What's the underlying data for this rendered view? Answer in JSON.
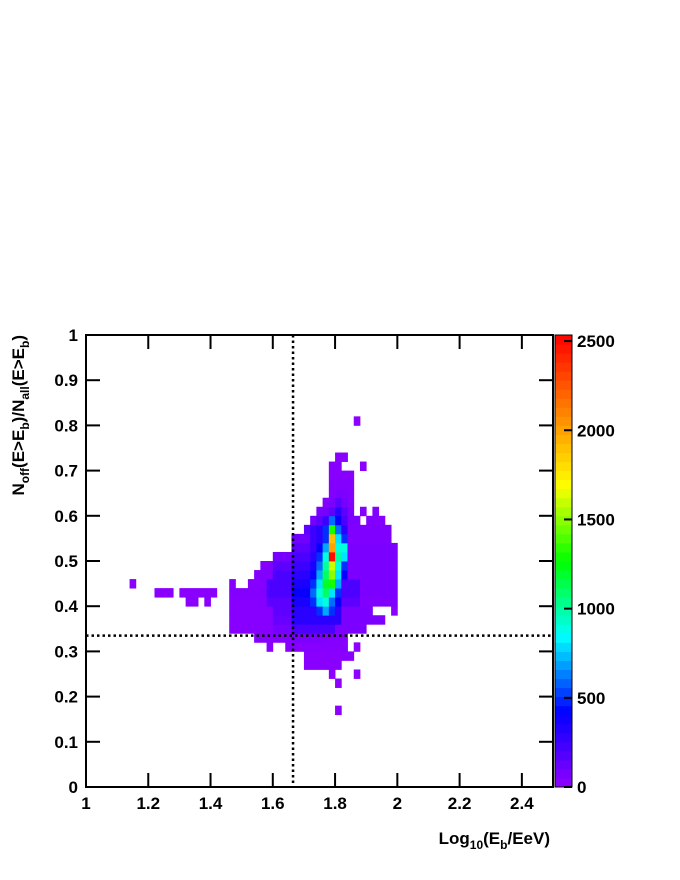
{
  "chart_data": {
    "type": "heatmap",
    "xlabel_parts": [
      {
        "text": "Log"
      },
      {
        "text": "10",
        "sub": true
      },
      {
        "text": "(E"
      },
      {
        "text": "b",
        "sub": true
      },
      {
        "text": "/EeV)"
      }
    ],
    "ylabel_parts": [
      {
        "text": "N"
      },
      {
        "text": "off",
        "sub": true
      },
      {
        "text": "(E>E"
      },
      {
        "text": "b",
        "sub": true
      },
      {
        "text": ")/N"
      },
      {
        "text": "all",
        "sub": true
      },
      {
        "text": "(E>E"
      },
      {
        "text": "b",
        "sub": true
      },
      {
        "text": ")"
      }
    ],
    "xlim": [
      1,
      2.5
    ],
    "xticks": [
      1,
      1.2,
      1.4,
      1.6,
      1.8,
      2,
      2.2,
      2.4
    ],
    "ylim": [
      0,
      1
    ],
    "yticks": [
      0,
      0.1,
      0.2,
      0.3,
      0.4,
      0.5,
      0.6,
      0.7,
      0.8,
      0.9,
      1
    ],
    "zlim": [
      0,
      2534
    ],
    "zticks": [
      0,
      500,
      1000,
      1500,
      2000,
      2500
    ],
    "palette": [
      "#9100ff",
      "#0000ff",
      "#00ffff",
      "#00ff00",
      "#ffff00",
      "#ff8000",
      "#ff0000"
    ],
    "bin_width": 0.02,
    "bin_height": 0.02,
    "reference_lines": {
      "x": 1.665,
      "y": 0.335
    },
    "rows": [
      {
        "y": 0.16,
        "x0": 1.8,
        "values": [
          10
        ]
      },
      {
        "y": 0.22,
        "x0": 1.8,
        "values": [
          10
        ]
      },
      {
        "y": 0.24,
        "x0": 1.78,
        "values": [
          10,
          null,
          null,
          null,
          10
        ]
      },
      {
        "y": 0.26,
        "x0": 1.7,
        "values": [
          20,
          20,
          20,
          20,
          20,
          20
        ]
      },
      {
        "y": 0.28,
        "x0": 1.7,
        "values": [
          20,
          20,
          20,
          20,
          20,
          20,
          20,
          20
        ]
      },
      {
        "y": 0.3,
        "x0": 1.58,
        "values": [
          20
        ]
      },
      {
        "y": 0.3,
        "x0": 1.64,
        "values": [
          30,
          30,
          30,
          30,
          30,
          30,
          30,
          30,
          30,
          30
        ]
      },
      {
        "y": 0.3,
        "x0": 1.86,
        "values": [
          10
        ]
      },
      {
        "y": 0.32,
        "x0": 1.54,
        "values": [
          30,
          30,
          30,
          30,
          30,
          30,
          60,
          60,
          60,
          60,
          60,
          40,
          40,
          40,
          30
        ]
      },
      {
        "y": 0.34,
        "x0": 1.46,
        "values": [
          30,
          30,
          30,
          30,
          30,
          30,
          30,
          80,
          80,
          80,
          200,
          200,
          200,
          200,
          200,
          200,
          200,
          60,
          60,
          60,
          60,
          60
        ]
      },
      {
        "y": 0.36,
        "x0": 1.46,
        "values": [
          30,
          30,
          30,
          30,
          30,
          30,
          30,
          120,
          120,
          120,
          300,
          300,
          300,
          300,
          300,
          300,
          300,
          300,
          60,
          60,
          60,
          60,
          60,
          60,
          60
        ]
      },
      {
        "y": 0.38,
        "x0": 1.46,
        "values": [
          30,
          30,
          30,
          30,
          30,
          30,
          30,
          150,
          150,
          150,
          300,
          300,
          300,
          300,
          500,
          700,
          500,
          300,
          60,
          60,
          60,
          60,
          60,
          null,
          null,
          null,
          20
        ]
      },
      {
        "y": 0.4,
        "x0": 1.32,
        "values": [
          20,
          20,
          null,
          20
        ]
      },
      {
        "y": 0.4,
        "x0": 1.46,
        "values": [
          30,
          30,
          30,
          30,
          30,
          30,
          150,
          150,
          150,
          150,
          350,
          350,
          350,
          500,
          800,
          900,
          600,
          400,
          150,
          150,
          150,
          50,
          50,
          50,
          50,
          50,
          50
        ]
      },
      {
        "y": 0.42,
        "x0": 1.22,
        "values": [
          20,
          20,
          20
        ]
      },
      {
        "y": 0.42,
        "x0": 1.3,
        "values": [
          20,
          20,
          20,
          20,
          20,
          20
        ]
      },
      {
        "y": 0.42,
        "x0": 1.46,
        "values": [
          40,
          40,
          40,
          40,
          40,
          40,
          200,
          200,
          200,
          200,
          400,
          400,
          400,
          600,
          900,
          1100,
          800,
          500,
          200,
          200,
          200,
          60,
          60,
          60,
          60,
          60,
          60
        ]
      },
      {
        "y": 0.44,
        "x0": 1.14,
        "values": [
          20
        ]
      },
      {
        "y": 0.44,
        "x0": 1.46,
        "values": [
          30,
          null,
          null,
          30,
          30,
          40,
          200,
          200,
          200,
          200,
          350,
          350,
          350,
          500,
          800,
          1200,
          1300,
          700,
          200,
          200,
          200,
          60,
          60,
          60,
          60,
          60,
          60
        ]
      },
      {
        "y": 0.46,
        "x0": 1.54,
        "values": [
          40,
          40,
          40,
          200,
          200,
          200,
          300,
          300,
          300,
          400,
          700,
          1100,
          1500,
          800,
          400,
          60,
          60,
          60,
          60,
          60,
          60,
          60,
          60
        ]
      },
      {
        "y": 0.48,
        "x0": 1.56,
        "values": [
          40,
          40,
          150,
          150,
          150,
          250,
          250,
          250,
          350,
          600,
          1000,
          1600,
          900,
          500,
          60,
          60,
          60,
          60,
          60,
          60,
          60,
          60
        ]
      },
      {
        "y": 0.5,
        "x0": 1.6,
        "values": [
          80,
          80,
          80,
          200,
          200,
          200,
          300,
          500,
          900,
          2500,
          1000,
          800,
          60,
          60,
          60,
          60,
          60,
          60,
          60,
          60
        ]
      },
      {
        "y": 0.52,
        "x0": 1.66,
        "values": [
          150,
          150,
          150,
          250,
          400,
          700,
          2000,
          900,
          900,
          60,
          60,
          60,
          60,
          60,
          60,
          60,
          60
        ]
      },
      {
        "y": 0.54,
        "x0": 1.66,
        "values": [
          100,
          100,
          100,
          250,
          300,
          500,
          1900,
          800,
          500,
          50,
          50,
          50,
          50,
          50,
          50,
          50
        ]
      },
      {
        "y": 0.56,
        "x0": 1.7,
        "values": [
          150,
          250,
          300,
          500,
          1300,
          600,
          300,
          50,
          50,
          50,
          50,
          50,
          50,
          50
        ]
      },
      {
        "y": 0.58,
        "x0": 1.72,
        "values": [
          80,
          150,
          250,
          600,
          400,
          200,
          60,
          60,
          null,
          40,
          40,
          40
        ]
      },
      {
        "y": 0.6,
        "x0": 1.74,
        "values": [
          60,
          80,
          150,
          300,
          150,
          60,
          null,
          40,
          null,
          40
        ]
      },
      {
        "y": 0.62,
        "x0": 1.76,
        "values": [
          40,
          60,
          150,
          80,
          40
        ]
      },
      {
        "y": 0.64,
        "x0": 1.78,
        "values": [
          40,
          60,
          60,
          40
        ]
      },
      {
        "y": 0.66,
        "x0": 1.78,
        "values": [
          40,
          40,
          40,
          40
        ]
      },
      {
        "y": 0.68,
        "x0": 1.78,
        "values": [
          30,
          30,
          30,
          30
        ]
      },
      {
        "y": 0.7,
        "x0": 1.78,
        "values": [
          30,
          30,
          null,
          null,
          null,
          20
        ]
      },
      {
        "y": 0.72,
        "x0": 1.8,
        "values": [
          20,
          20
        ]
      },
      {
        "y": 0.8,
        "x0": 1.86,
        "values": [
          10
        ]
      }
    ]
  }
}
